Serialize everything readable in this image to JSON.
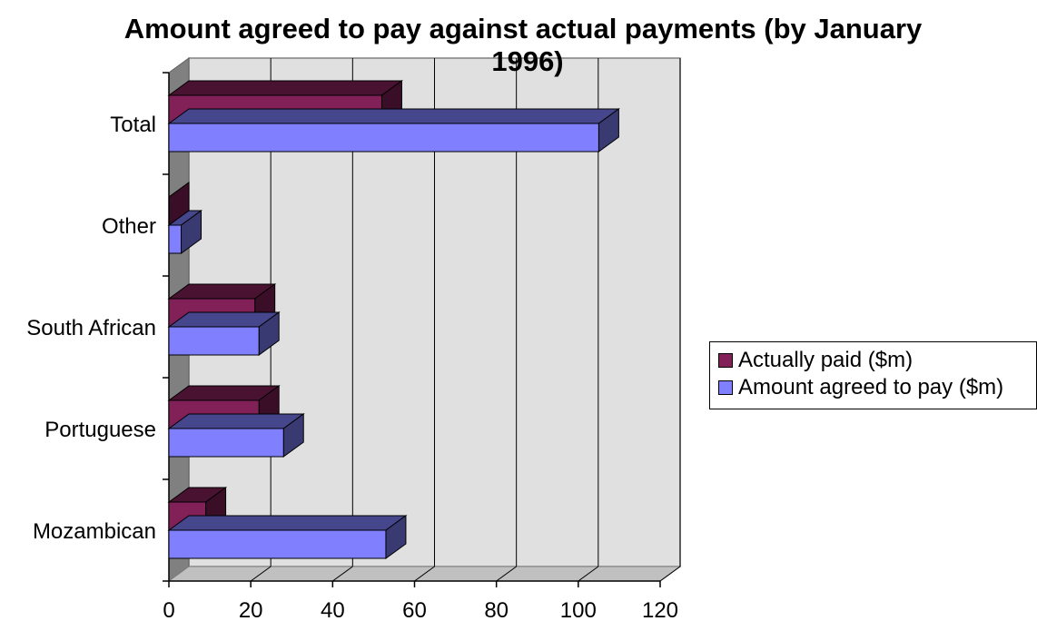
{
  "chart_data": {
    "type": "bar",
    "orientation": "horizontal",
    "title": "Amount agreed to pay against actual payments (by January 1996)",
    "title_lines": [
      "Amount agreed to pay against actual payments (by January",
      "1996)"
    ],
    "categories": [
      "Mozambican",
      "Portuguese",
      "South African",
      "Other",
      "Total"
    ],
    "series": [
      {
        "name": "Actually paid ($m)",
        "values": [
          9,
          22,
          21,
          0,
          52
        ],
        "color": "#822058"
      },
      {
        "name": "Amount agreed to pay ($m)",
        "values": [
          53,
          28,
          22,
          3,
          105
        ],
        "color": "#8080ff"
      }
    ],
    "xlim": [
      0,
      120
    ],
    "xticks": [
      0,
      20,
      40,
      60,
      80,
      100,
      120
    ],
    "grid": true,
    "legend_position": "right",
    "three_d": true,
    "colors": {
      "wall": "#e0e0e0",
      "floor": "#808080"
    }
  }
}
